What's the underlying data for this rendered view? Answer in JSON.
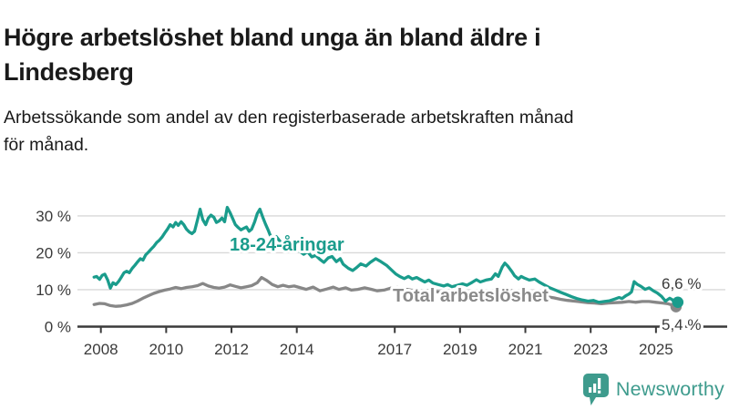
{
  "header": {
    "title_lines": [
      "Högre arbetslöshet bland unga än bland äldre i",
      "Lindesberg"
    ],
    "subtitle_lines": [
      "Arbetssökande som andel av den registerbaserade arbetskraften månad",
      "för månad."
    ]
  },
  "chart_data": {
    "type": "line",
    "title": "Högre arbetslöshet bland unga än bland äldre i Lindesberg",
    "subtitle": "Arbetssökande som andel av den registerbaserade arbetskraften månad för månad.",
    "grid": "horizontal",
    "legend_position": "inline-labels",
    "x_axis": {
      "unit": "year",
      "range": [
        2007.3,
        2027.2
      ],
      "ticks": [
        2008,
        2010,
        2012,
        2014,
        2017,
        2019,
        2021,
        2023,
        2025
      ],
      "tick_labels": [
        "2008",
        "2010",
        "2012",
        "2014",
        "2017",
        "2019",
        "2021",
        "2023",
        "2025"
      ]
    },
    "y_axis": {
      "unit": "%",
      "range": [
        0,
        35
      ],
      "ticks": [
        0,
        10,
        20,
        30
      ],
      "tick_labels": [
        "0 %",
        "10 %",
        "20 %",
        "30 %"
      ]
    },
    "colors": {
      "young": "#1a9c8c",
      "total": "#878787",
      "grid": "#d8d8d8",
      "axis": "#3a3a3a"
    },
    "series": [
      {
        "name": "18-24-åringar",
        "color": "#1a9c8c",
        "end_label": "6,6 %",
        "end_value": 6.6,
        "points": [
          [
            2007.79,
            13.4
          ],
          [
            2007.87,
            13.6
          ],
          [
            2007.96,
            12.8
          ],
          [
            2008.04,
            13.9
          ],
          [
            2008.12,
            14.2
          ],
          [
            2008.21,
            12.6
          ],
          [
            2008.29,
            10.4
          ],
          [
            2008.37,
            11.9
          ],
          [
            2008.46,
            11.4
          ],
          [
            2008.54,
            12.2
          ],
          [
            2008.62,
            13.3
          ],
          [
            2008.71,
            14.6
          ],
          [
            2008.79,
            15.0
          ],
          [
            2008.87,
            14.6
          ],
          [
            2008.96,
            15.8
          ],
          [
            2009.04,
            16.6
          ],
          [
            2009.12,
            17.5
          ],
          [
            2009.21,
            18.4
          ],
          [
            2009.29,
            18.0
          ],
          [
            2009.37,
            19.4
          ],
          [
            2009.46,
            20.2
          ],
          [
            2009.54,
            21.0
          ],
          [
            2009.62,
            21.7
          ],
          [
            2009.71,
            22.8
          ],
          [
            2009.79,
            23.4
          ],
          [
            2009.87,
            24.2
          ],
          [
            2009.96,
            25.4
          ],
          [
            2010.04,
            26.4
          ],
          [
            2010.12,
            27.6
          ],
          [
            2010.21,
            27.0
          ],
          [
            2010.29,
            28.2
          ],
          [
            2010.37,
            27.4
          ],
          [
            2010.46,
            28.4
          ],
          [
            2010.54,
            27.6
          ],
          [
            2010.62,
            26.4
          ],
          [
            2010.71,
            25.6
          ],
          [
            2010.79,
            25.2
          ],
          [
            2010.87,
            25.8
          ],
          [
            2010.96,
            29.0
          ],
          [
            2011.04,
            31.8
          ],
          [
            2011.12,
            29.0
          ],
          [
            2011.21,
            27.6
          ],
          [
            2011.29,
            29.4
          ],
          [
            2011.37,
            30.2
          ],
          [
            2011.46,
            29.6
          ],
          [
            2011.54,
            28.2
          ],
          [
            2011.62,
            28.6
          ],
          [
            2011.71,
            29.4
          ],
          [
            2011.79,
            28.4
          ],
          [
            2011.87,
            32.3
          ],
          [
            2011.96,
            30.8
          ],
          [
            2012.04,
            29.2
          ],
          [
            2012.12,
            27.6
          ],
          [
            2012.21,
            26.8
          ],
          [
            2012.29,
            26.2
          ],
          [
            2012.37,
            26.6
          ],
          [
            2012.46,
            27.0
          ],
          [
            2012.54,
            25.8
          ],
          [
            2012.62,
            26.4
          ],
          [
            2012.71,
            28.4
          ],
          [
            2012.79,
            30.6
          ],
          [
            2012.87,
            31.8
          ],
          [
            2012.96,
            29.6
          ],
          [
            2013.04,
            27.8
          ],
          [
            2013.12,
            26.2
          ],
          [
            2013.21,
            24.2
          ],
          [
            2013.29,
            23.6
          ],
          [
            2013.37,
            24.4
          ],
          [
            2013.46,
            23.4
          ],
          [
            2013.54,
            22.6
          ],
          [
            2013.62,
            23.0
          ],
          [
            2013.71,
            22.2
          ],
          [
            2013.79,
            21.4
          ],
          [
            2013.87,
            20.8
          ],
          [
            2013.96,
            21.2
          ],
          [
            2014.12,
            20.2
          ],
          [
            2014.21,
            19.6
          ],
          [
            2014.33,
            20.3
          ],
          [
            2014.46,
            18.9
          ],
          [
            2014.58,
            19.3
          ],
          [
            2014.71,
            18.2
          ],
          [
            2014.83,
            17.4
          ],
          [
            2014.96,
            18.6
          ],
          [
            2015.08,
            19.0
          ],
          [
            2015.21,
            17.6
          ],
          [
            2015.33,
            18.4
          ],
          [
            2015.42,
            16.9
          ],
          [
            2015.58,
            15.8
          ],
          [
            2015.71,
            15.2
          ],
          [
            2015.83,
            16.0
          ],
          [
            2015.96,
            17.0
          ],
          [
            2016.12,
            16.4
          ],
          [
            2016.25,
            17.4
          ],
          [
            2016.42,
            18.4
          ],
          [
            2016.58,
            17.6
          ],
          [
            2016.75,
            16.6
          ],
          [
            2016.92,
            15.2
          ],
          [
            2017.04,
            14.2
          ],
          [
            2017.17,
            13.5
          ],
          [
            2017.29,
            13.0
          ],
          [
            2017.42,
            13.6
          ],
          [
            2017.54,
            12.9
          ],
          [
            2017.67,
            13.3
          ],
          [
            2017.79,
            12.7
          ],
          [
            2017.92,
            12.1
          ],
          [
            2018.04,
            12.6
          ],
          [
            2018.17,
            11.8
          ],
          [
            2018.33,
            11.4
          ],
          [
            2018.5,
            11.0
          ],
          [
            2018.62,
            11.4
          ],
          [
            2018.75,
            10.8
          ],
          [
            2018.92,
            11.2
          ],
          [
            2019.08,
            11.6
          ],
          [
            2019.21,
            11.2
          ],
          [
            2019.37,
            12.0
          ],
          [
            2019.5,
            12.7
          ],
          [
            2019.62,
            12.1
          ],
          [
            2019.79,
            12.6
          ],
          [
            2019.96,
            12.9
          ],
          [
            2020.08,
            14.3
          ],
          [
            2020.17,
            13.6
          ],
          [
            2020.29,
            16.1
          ],
          [
            2020.37,
            17.2
          ],
          [
            2020.46,
            16.4
          ],
          [
            2020.58,
            15.0
          ],
          [
            2020.67,
            13.8
          ],
          [
            2020.79,
            12.9
          ],
          [
            2020.87,
            13.6
          ],
          [
            2020.96,
            13.2
          ],
          [
            2021.12,
            12.6
          ],
          [
            2021.29,
            12.9
          ],
          [
            2021.42,
            12.1
          ],
          [
            2021.58,
            11.3
          ],
          [
            2021.75,
            10.5
          ],
          [
            2021.92,
            9.9
          ],
          [
            2022.08,
            9.3
          ],
          [
            2022.25,
            8.7
          ],
          [
            2022.42,
            8.1
          ],
          [
            2022.58,
            7.6
          ],
          [
            2022.75,
            7.2
          ],
          [
            2022.92,
            6.9
          ],
          [
            2023.08,
            7.1
          ],
          [
            2023.25,
            6.6
          ],
          [
            2023.42,
            6.8
          ],
          [
            2023.58,
            7.0
          ],
          [
            2023.75,
            7.5
          ],
          [
            2023.87,
            7.9
          ],
          [
            2023.96,
            7.6
          ],
          [
            2024.08,
            8.4
          ],
          [
            2024.17,
            8.8
          ],
          [
            2024.25,
            9.4
          ],
          [
            2024.33,
            12.2
          ],
          [
            2024.42,
            11.5
          ],
          [
            2024.54,
            10.9
          ],
          [
            2024.67,
            10.1
          ],
          [
            2024.79,
            10.5
          ],
          [
            2024.92,
            9.7
          ],
          [
            2025.04,
            9.1
          ],
          [
            2025.17,
            8.2
          ],
          [
            2025.29,
            6.9
          ],
          [
            2025.42,
            7.7
          ],
          [
            2025.5,
            7.3
          ],
          [
            2025.58,
            6.2
          ],
          [
            2025.67,
            6.6
          ]
        ]
      },
      {
        "name": "Total arbetslöshet",
        "color": "#878787",
        "end_label": "5,4 %",
        "end_value": 5.4,
        "points": [
          [
            2007.79,
            6.0
          ],
          [
            2007.96,
            6.3
          ],
          [
            2008.12,
            6.2
          ],
          [
            2008.29,
            5.7
          ],
          [
            2008.46,
            5.5
          ],
          [
            2008.62,
            5.6
          ],
          [
            2008.79,
            5.9
          ],
          [
            2008.96,
            6.3
          ],
          [
            2009.12,
            6.9
          ],
          [
            2009.29,
            7.7
          ],
          [
            2009.46,
            8.4
          ],
          [
            2009.62,
            9.0
          ],
          [
            2009.79,
            9.5
          ],
          [
            2009.96,
            9.9
          ],
          [
            2010.12,
            10.2
          ],
          [
            2010.29,
            10.6
          ],
          [
            2010.46,
            10.3
          ],
          [
            2010.62,
            10.6
          ],
          [
            2010.79,
            10.8
          ],
          [
            2010.96,
            11.1
          ],
          [
            2011.12,
            11.7
          ],
          [
            2011.29,
            11.0
          ],
          [
            2011.46,
            10.6
          ],
          [
            2011.62,
            10.4
          ],
          [
            2011.79,
            10.7
          ],
          [
            2011.96,
            11.3
          ],
          [
            2012.12,
            10.9
          ],
          [
            2012.29,
            10.5
          ],
          [
            2012.46,
            10.8
          ],
          [
            2012.62,
            11.1
          ],
          [
            2012.79,
            11.9
          ],
          [
            2012.92,
            13.3
          ],
          [
            2013.08,
            12.5
          ],
          [
            2013.25,
            11.4
          ],
          [
            2013.42,
            10.8
          ],
          [
            2013.58,
            11.2
          ],
          [
            2013.75,
            10.8
          ],
          [
            2013.92,
            11.0
          ],
          [
            2014.08,
            10.6
          ],
          [
            2014.29,
            10.1
          ],
          [
            2014.5,
            10.7
          ],
          [
            2014.71,
            9.7
          ],
          [
            2014.92,
            10.2
          ],
          [
            2015.12,
            10.7
          ],
          [
            2015.29,
            10.1
          ],
          [
            2015.5,
            10.5
          ],
          [
            2015.67,
            9.9
          ],
          [
            2015.87,
            10.1
          ],
          [
            2016.08,
            10.5
          ],
          [
            2016.29,
            10.1
          ],
          [
            2016.46,
            9.7
          ],
          [
            2016.67,
            9.9
          ],
          [
            2016.87,
            10.4
          ],
          [
            2017.08,
            10.6
          ],
          [
            2017.29,
            10.2
          ],
          [
            2017.5,
            9.9
          ],
          [
            2017.75,
            9.7
          ],
          [
            2018.0,
            9.8
          ],
          [
            2018.25,
            9.5
          ],
          [
            2018.5,
            9.3
          ],
          [
            2018.75,
            9.0
          ],
          [
            2019.0,
            8.8
          ],
          [
            2019.25,
            8.7
          ],
          [
            2019.5,
            8.6
          ],
          [
            2019.75,
            8.5
          ],
          [
            2020.0,
            8.6
          ],
          [
            2020.21,
            9.3
          ],
          [
            2020.42,
            9.8
          ],
          [
            2020.62,
            9.7
          ],
          [
            2020.83,
            9.5
          ],
          [
            2021.04,
            9.2
          ],
          [
            2021.25,
            8.9
          ],
          [
            2021.46,
            8.5
          ],
          [
            2021.67,
            8.1
          ],
          [
            2021.87,
            7.8
          ],
          [
            2022.08,
            7.4
          ],
          [
            2022.29,
            7.1
          ],
          [
            2022.5,
            6.9
          ],
          [
            2022.71,
            6.7
          ],
          [
            2022.92,
            6.5
          ],
          [
            2023.12,
            6.4
          ],
          [
            2023.33,
            6.2
          ],
          [
            2023.54,
            6.4
          ],
          [
            2023.75,
            6.5
          ],
          [
            2023.96,
            6.6
          ],
          [
            2024.17,
            6.8
          ],
          [
            2024.37,
            6.6
          ],
          [
            2024.58,
            6.8
          ],
          [
            2024.79,
            6.8
          ],
          [
            2025.0,
            6.6
          ],
          [
            2025.21,
            6.4
          ],
          [
            2025.37,
            6.2
          ],
          [
            2025.52,
            5.8
          ],
          [
            2025.67,
            5.4
          ]
        ]
      }
    ]
  },
  "footer": {
    "brand": "Newsworthy"
  }
}
